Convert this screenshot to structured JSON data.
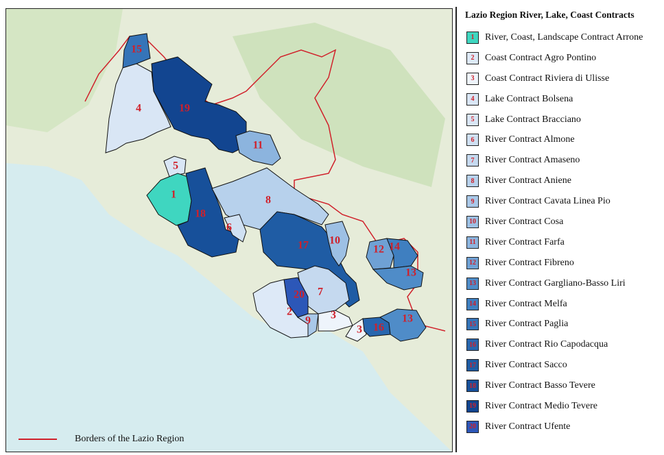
{
  "legend": {
    "title": "Lazio Region  River, Lake, Coast Contracts",
    "items": [
      {
        "num": "1",
        "label": "River, Coast, Landscape Contract Arrone",
        "color": "#3fd6c0"
      },
      {
        "num": "2",
        "label": "Coast Contract Agro Pontino",
        "color": "#dde9f7"
      },
      {
        "num": "3",
        "label": "Coast Contract Riviera di Ulisse",
        "color": "#eef4fb"
      },
      {
        "num": "4",
        "label": "Lake Contract Bolsena",
        "color": "#d9e6f5"
      },
      {
        "num": "5",
        "label": "Lake Contract Bracciano",
        "color": "#d9e6f5"
      },
      {
        "num": "6",
        "label": "River Contract Almone",
        "color": "#cfe0f2"
      },
      {
        "num": "7",
        "label": "River Contract Amaseno",
        "color": "#c5d9ef"
      },
      {
        "num": "8",
        "label": "River Contract Aniene",
        "color": "#b7d1ec"
      },
      {
        "num": "9",
        "label": "River Contract Cavata Linea Pio",
        "color": "#a9c8e8"
      },
      {
        "num": "10",
        "label": "River Contract Cosa",
        "color": "#9dc0e4"
      },
      {
        "num": "11",
        "label": "River Contract Farfa",
        "color": "#8cb4de"
      },
      {
        "num": "12",
        "label": "River Contract Fibreno",
        "color": "#6fa1d4"
      },
      {
        "num": "13",
        "label": "River Contract Gargliano-Basso Liri",
        "color": "#4f8cc8"
      },
      {
        "num": "14",
        "label": "River Contract Melfa",
        "color": "#3f7fc0"
      },
      {
        "num": "15",
        "label": "River Contract Paglia",
        "color": "#3574b8"
      },
      {
        "num": "16",
        "label": "River Contract Rio Capodacqua",
        "color": "#2866ae"
      },
      {
        "num": "17",
        "label": "River Contract Sacco",
        "color": "#1f5ca4"
      },
      {
        "num": "18",
        "label": "River Contract Basso Tevere",
        "color": "#17509a"
      },
      {
        "num": "19",
        "label": "River Contract Medio Tevere",
        "color": "#124590"
      },
      {
        "num": "20",
        "label": "River Contract Ufente",
        "color": "#2c57b8"
      }
    ]
  },
  "borders_key": {
    "label": "Borders of the Lazio Region",
    "color": "#d0202a"
  },
  "map_labels": [
    "15",
    "4",
    "19",
    "11",
    "5",
    "1",
    "18",
    "8",
    "6",
    "17",
    "10",
    "12",
    "14",
    "13",
    "7",
    "20",
    "2",
    "9",
    "3",
    "3",
    "16",
    "13"
  ]
}
